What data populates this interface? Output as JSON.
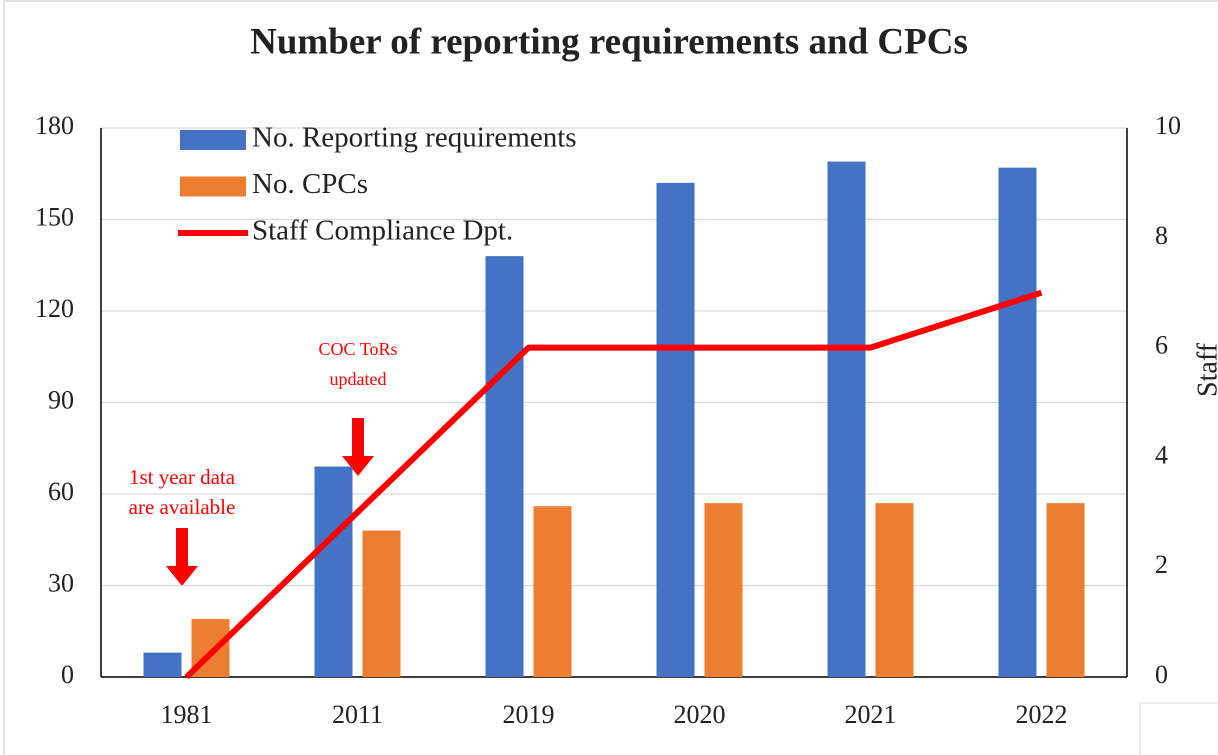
{
  "chart_data": {
    "type": "bar",
    "title": "Number of reporting requirements and CPCs",
    "categories": [
      "1981",
      "2011",
      "2019",
      "2020",
      "2021",
      "2022"
    ],
    "series": [
      {
        "name": "No. Reporting requirements",
        "color": "#4472c4",
        "values": [
          8,
          69,
          138,
          162,
          169,
          167
        ]
      },
      {
        "name": "No. CPCs",
        "color": "#ed7d31",
        "values": [
          19,
          48,
          56,
          57,
          57,
          57
        ]
      },
      {
        "name": "Staff Compliance Dpt.",
        "color": "#ff0000",
        "type": "line",
        "axis": "y2",
        "values": [
          0,
          3,
          6,
          6,
          6,
          7
        ]
      }
    ],
    "ylim": [
      0,
      180
    ],
    "yticks": [
      0,
      30,
      60,
      90,
      120,
      150,
      180
    ],
    "y2lim": [
      0,
      10
    ],
    "y2ticks": [
      0,
      2,
      4,
      6,
      8,
      10
    ],
    "y2label": "Staff",
    "grid": true,
    "legend": "upper left",
    "annotations": [
      {
        "lines": [
          "1st year data",
          "are available"
        ]
      },
      {
        "lines": [
          "COC ToRs",
          "updated"
        ]
      }
    ]
  }
}
